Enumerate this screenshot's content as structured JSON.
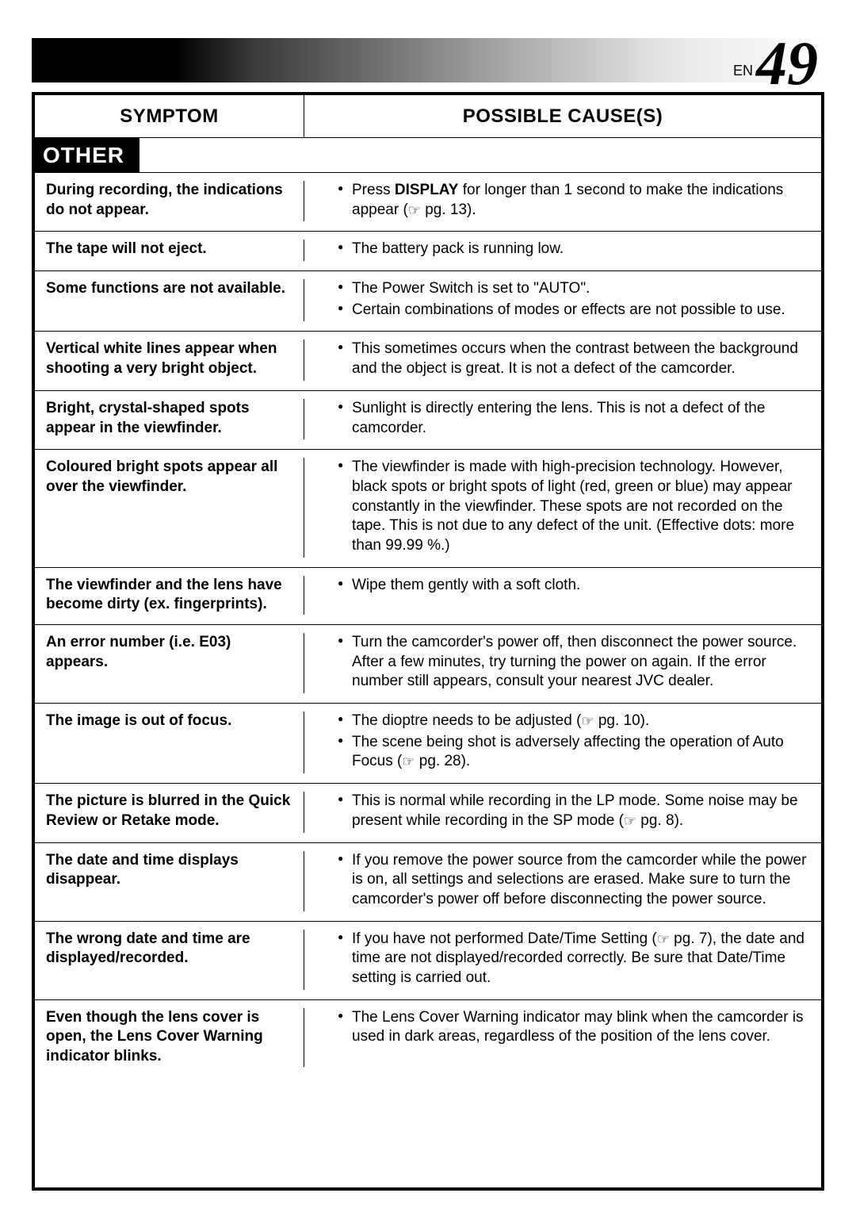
{
  "page": {
    "lang_label": "EN",
    "number": "49"
  },
  "headers": {
    "symptom": "SYMPTOM",
    "cause": "POSSIBLE CAUSE(S)"
  },
  "section_label": "OTHER",
  "ref_glyph": "☞",
  "rows": [
    {
      "symptom": "During recording, the indications do not appear.",
      "causes": [
        {
          "pre": "Press ",
          "bold": "DISPLAY",
          "post": " for longer than 1 second to make the indications appear (",
          "ref": true,
          "tail": " pg. 13)."
        }
      ]
    },
    {
      "symptom": "The tape will not eject.",
      "causes": [
        {
          "text": "The battery pack is running low."
        }
      ]
    },
    {
      "symptom": "Some functions are not available.",
      "causes": [
        {
          "text": "The Power Switch is set to \"AUTO\"."
        },
        {
          "text": "Certain combinations of modes or effects are not possible to use."
        }
      ]
    },
    {
      "symptom": "Vertical white lines appear when shooting a very bright object.",
      "causes": [
        {
          "text": "This sometimes occurs when the contrast between the background and the object is great. It is not a defect of the camcorder."
        }
      ]
    },
    {
      "symptom": "Bright, crystal-shaped spots appear in the viewfinder.",
      "causes": [
        {
          "text": "Sunlight is directly entering the lens. This is not a defect of the camcorder."
        }
      ]
    },
    {
      "symptom": "Coloured bright spots appear all over the viewfinder.",
      "causes": [
        {
          "text": "The viewfinder is made with high-precision technology. However, black spots or bright spots of light (red, green or blue) may appear constantly in the viewfinder. These spots are not recorded on the tape. This is not due to any defect of the unit. (Effective dots: more than 99.99 %.)"
        }
      ]
    },
    {
      "symptom": "The viewfinder and the lens have become dirty (ex. fingerprints).",
      "causes": [
        {
          "text": "Wipe them gently with a soft cloth."
        }
      ]
    },
    {
      "symptom": "An error number (i.e. E03) appears.",
      "causes": [
        {
          "text": "Turn the camcorder's power off, then disconnect the power source. After a few minutes, try turning the power on again. If the error number still appears, consult your nearest JVC dealer."
        }
      ]
    },
    {
      "symptom": "The image is out of focus.",
      "causes": [
        {
          "pre": "The dioptre needs to be adjusted (",
          "ref": true,
          "tail": " pg. 10)."
        },
        {
          "pre": "The scene being shot is adversely affecting the operation of Auto Focus (",
          "ref": true,
          "tail": " pg. 28)."
        }
      ]
    },
    {
      "symptom": "The picture is blurred in the Quick Review or Retake mode.",
      "causes": [
        {
          "pre": "This is normal while recording in the LP mode. Some noise may be present while recording in the SP mode (",
          "ref": true,
          "tail": " pg. 8)."
        }
      ]
    },
    {
      "symptom": "The date and time displays disappear.",
      "causes": [
        {
          "text": "If you remove the power source from the camcorder while the power is on, all settings and selections are erased. Make sure to turn the camcorder's power off before disconnecting the power source."
        }
      ]
    },
    {
      "symptom": "The wrong date and time are displayed/recorded.",
      "causes": [
        {
          "pre": "If you have not performed Date/Time Setting (",
          "ref": true,
          "tail": " pg. 7), the date and time are not displayed/recorded correctly. Be sure that Date/Time setting is carried out."
        }
      ]
    },
    {
      "symptom": "Even though the lens cover is open, the Lens Cover Warning indicator blinks.",
      "causes": [
        {
          "text": "The Lens Cover Warning indicator may blink when the camcorder is used in dark areas, regardless of the position of the lens cover."
        }
      ]
    }
  ]
}
